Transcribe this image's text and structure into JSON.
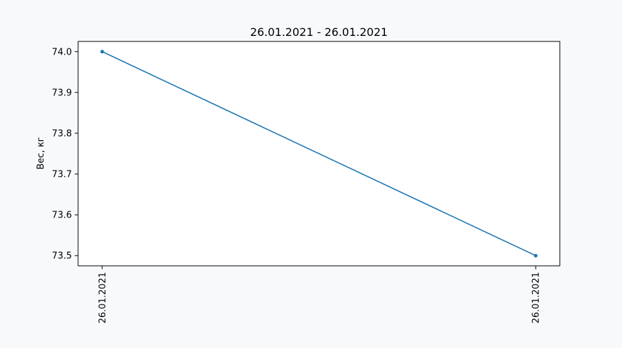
{
  "chart_data": {
    "type": "line",
    "title": "26.01.2021 - 26.01.2021",
    "xlabel": "",
    "ylabel": "Вес, кг",
    "categories": [
      "26.01.2021",
      "26.01.2021"
    ],
    "series": [
      {
        "values": [
          74.0,
          73.5
        ]
      }
    ],
    "ylim": [
      73.475,
      74.025
    ],
    "yticks": [
      "73.5",
      "73.6",
      "73.7",
      "73.8",
      "73.9",
      "74.0"
    ],
    "grid": false,
    "legend": "none",
    "x_tick_rotation": "vertical",
    "marker": "dot"
  },
  "colors": {
    "background": "#f7f9fb",
    "plot_background": "#ffffff",
    "series": "#1f77b4",
    "axes": "#000000"
  }
}
